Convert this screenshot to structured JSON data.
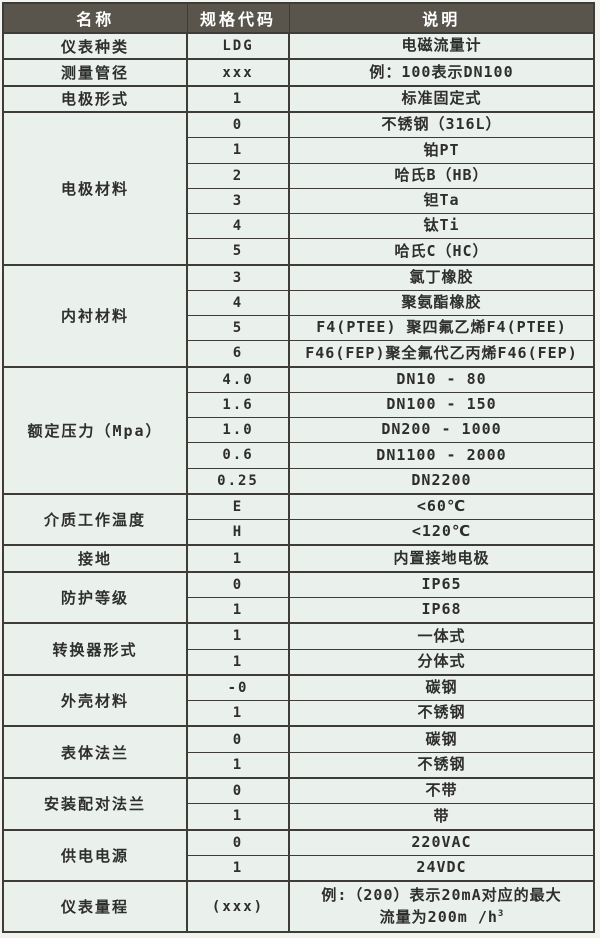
{
  "colors": {
    "page_bg": "#f2f3ef",
    "header_bg": "#59554d",
    "header_text": "#ffffff",
    "cell_bg": "#eaf0ec",
    "border": "#3e3c37",
    "text": "#2e2e2c"
  },
  "table": {
    "headers": [
      "名称",
      "规格代码",
      "说明"
    ],
    "groups": [
      {
        "name": "仪表种类",
        "rows": [
          {
            "code": "LDG",
            "desc": "电磁流量计"
          }
        ]
      },
      {
        "name": "测量管径",
        "rows": [
          {
            "code": "xxx",
            "desc": "例：100表示DN100"
          }
        ]
      },
      {
        "name": "电极形式",
        "rows": [
          {
            "code": "1",
            "desc": "标准固定式"
          }
        ]
      },
      {
        "name": "电极材料",
        "rows": [
          {
            "code": "0",
            "desc": "不锈钢（316L）"
          },
          {
            "code": "1",
            "desc": "铂PT"
          },
          {
            "code": "2",
            "desc": "哈氏B（HB）"
          },
          {
            "code": "3",
            "desc": "钽Ta"
          },
          {
            "code": "4",
            "desc": "钛Ti"
          },
          {
            "code": "5",
            "desc": "哈氏C（HC）"
          }
        ]
      },
      {
        "name": "内衬材料",
        "rows": [
          {
            "code": "3",
            "desc": "氯丁橡胶"
          },
          {
            "code": "4",
            "desc": "聚氨酯橡胶"
          },
          {
            "code": "5",
            "desc": "F4(PTEE) 聚四氟乙烯F4(PTEE)"
          },
          {
            "code": "6",
            "desc": "F46(FEP)聚全氟代乙丙烯F46(FEP)"
          }
        ]
      },
      {
        "name": "额定压力（Mpa）",
        "rows": [
          {
            "code": "4.0",
            "desc": "DN10 - 80"
          },
          {
            "code": "1.6",
            "desc": "DN100 - 150"
          },
          {
            "code": "1.0",
            "desc": "DN200 - 1000"
          },
          {
            "code": "0.6",
            "desc": "DN1100 - 2000"
          },
          {
            "code": "0.25",
            "desc": "DN2200"
          }
        ]
      },
      {
        "name": "介质工作温度",
        "rows": [
          {
            "code": "E",
            "desc": "<60℃"
          },
          {
            "code": "H",
            "desc": "<120℃"
          }
        ]
      },
      {
        "name": "接地",
        "rows": [
          {
            "code": "1",
            "desc": "内置接地电极"
          }
        ]
      },
      {
        "name": "防护等级",
        "rows": [
          {
            "code": "0",
            "desc": "IP65"
          },
          {
            "code": "1",
            "desc": "IP68"
          }
        ]
      },
      {
        "name": "转换器形式",
        "rows": [
          {
            "code": "1",
            "desc": "一体式"
          },
          {
            "code": "1",
            "desc": "分体式"
          }
        ]
      },
      {
        "name": "外壳材料",
        "rows": [
          {
            "code": "-0",
            "desc": "碳钢"
          },
          {
            "code": "1",
            "desc": "不锈钢"
          }
        ]
      },
      {
        "name": "表体法兰",
        "rows": [
          {
            "code": "0",
            "desc": "碳钢"
          },
          {
            "code": "1",
            "desc": "不锈钢"
          }
        ]
      },
      {
        "name": "安装配对法兰",
        "rows": [
          {
            "code": "0",
            "desc": "不带"
          },
          {
            "code": "1",
            "desc": "带"
          }
        ]
      },
      {
        "name": "供电电源",
        "rows": [
          {
            "code": "0",
            "desc": "220VAC"
          },
          {
            "code": "1",
            "desc": "24VDC"
          }
        ]
      },
      {
        "name": "仪表量程",
        "rows": [
          {
            "code": "(xxx)",
            "desc_lines": {
              "line1": "例:（200）表示20mA对应的最大",
              "line2": "流量为200m /h",
              "sup": "3"
            }
          }
        ]
      }
    ]
  }
}
